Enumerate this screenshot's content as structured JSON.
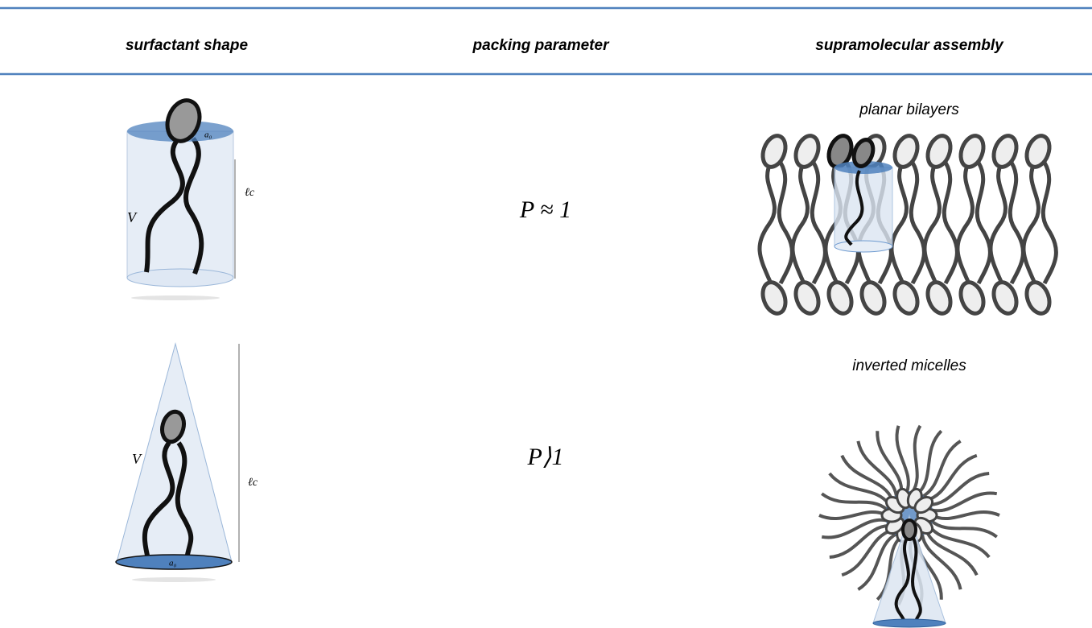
{
  "header": {
    "columns": [
      "surfactant shape",
      "packing parameter",
      "supramolecular assembly"
    ]
  },
  "rows": [
    {
      "shape_labels": {
        "area": "a₀",
        "length": "ℓc",
        "volume": "V"
      },
      "packing_parameter": "P ≈ 1",
      "assembly": "planar bilayers"
    },
    {
      "shape_labels": {
        "area": "a₀",
        "length": "ℓc",
        "volume": "V"
      },
      "packing_parameter": "P⟩1",
      "assembly": "inverted micelles"
    }
  ]
}
